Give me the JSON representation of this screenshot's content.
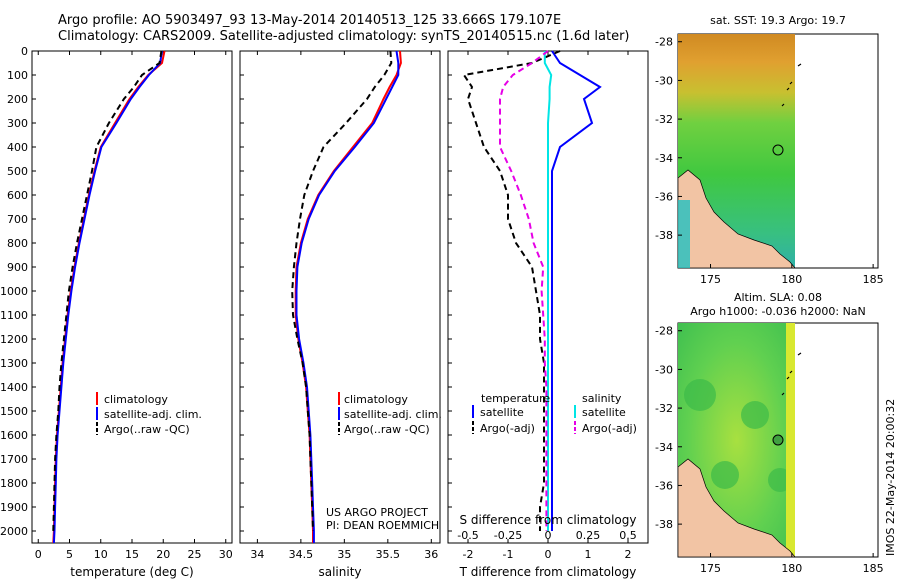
{
  "titles": {
    "line1": "Argo profile: AO 5903497_93 13-May-2014 20140513_125 33.666S 179.107E",
    "line2": "Climatology: CARS2009. Satellite-adjusted climatology: synTS_20140515.nc (1.6d later)"
  },
  "depth_ticks": [
    0,
    100,
    200,
    300,
    400,
    500,
    600,
    700,
    800,
    900,
    1000,
    1100,
    1200,
    1300,
    1400,
    1500,
    1600,
    1700,
    1800,
    1900,
    2000
  ],
  "colors": {
    "climatology": "#ff0000",
    "satellite": "#0000ff",
    "argo": "#000000",
    "salinity_sat": "#00e5e5",
    "salinity_argo": "#e600e6"
  },
  "panels": {
    "temperature": {
      "xlabel": "temperature (deg C)",
      "xlim": [
        -1,
        31
      ],
      "xticks": [
        "0",
        "5",
        "10",
        "15",
        "20",
        "25",
        "30"
      ],
      "xtick_values": [
        0,
        5,
        10,
        15,
        20,
        25,
        30
      ],
      "legend": [
        "climatology",
        "satellite-adj. clim.",
        "Argo(..raw -QC)"
      ]
    },
    "salinity": {
      "xlabel": "salinity",
      "xlim": [
        33.8,
        36.1
      ],
      "xticks": [
        "34",
        "34.5",
        "35",
        "35.5",
        "36"
      ],
      "xtick_values": [
        34,
        34.5,
        35,
        35.5,
        36
      ],
      "legend": [
        "climatology",
        "satellite-adj. clim.",
        "Argo(..raw -QC)"
      ],
      "annotation1": "US ARGO PROJECT",
      "annotation2": "PI: DEAN ROEMMICH"
    },
    "difference": {
      "xlabel": "T difference from climatology",
      "xlim": [
        -2.5,
        2.5
      ],
      "xticks": [
        "-2",
        "-1",
        "0",
        "1",
        "2"
      ],
      "xtick_values": [
        -2,
        -1,
        0,
        1,
        2
      ],
      "s_label": "S difference from climatology",
      "s_ticks": [
        "-0.5",
        "-0.25",
        "0",
        "0.25",
        "0.5"
      ],
      "s_tick_values": [
        -0.5,
        -0.25,
        0,
        0.25,
        0.5
      ],
      "legend_left_head": "temperature",
      "legend_right_head": "salinity",
      "legend_items": [
        "satellite",
        "Argo(-adj)",
        "satellite",
        "Argo(-adj)"
      ]
    }
  },
  "maps": {
    "sst_title": "sat. SST: 19.3 Argo: 19.7",
    "sla_title1": "Altim. SLA: 0.08",
    "sla_title2": "Argo h1000: -0.036 h2000: NaN",
    "xticks": [
      "175",
      "180",
      "185"
    ],
    "xtick_values": [
      175,
      180,
      185
    ],
    "yticks": [
      "-28",
      "-30",
      "-32",
      "-34",
      "-36",
      "-38"
    ],
    "ytick_values": [
      -28,
      -30,
      -32,
      -34,
      -36,
      -38
    ],
    "xlim": [
      173,
      185.3
    ],
    "ylim": [
      -39.7,
      -27.6
    ],
    "float_position": [
      179.107,
      -33.666
    ]
  },
  "footer": "IMOS 22-May-2014 20:00:32",
  "chart_data": [
    {
      "type": "line",
      "ylabel": "",
      "xlabel": "temperature (deg C)",
      "xlim": [
        -1,
        31
      ],
      "ylim": [
        2050,
        0
      ],
      "depth": [
        0,
        50,
        100,
        150,
        200,
        300,
        400,
        500,
        600,
        700,
        800,
        900,
        1000,
        1100,
        1200,
        1300,
        1400,
        1500,
        1600,
        1700,
        1800,
        1900,
        2000,
        2050
      ],
      "series": [
        {
          "name": "climatology",
          "values": [
            20.2,
            19.8,
            17.6,
            16.0,
            14.6,
            12.3,
            10.0,
            9.0,
            8.1,
            7.3,
            6.5,
            5.8,
            5.2,
            4.7,
            4.3,
            3.9,
            3.6,
            3.3,
            3.0,
            2.8,
            2.7,
            2.6,
            2.5,
            2.4
          ]
        },
        {
          "name": "satellite-adj. clim.",
          "values": [
            19.8,
            19.5,
            17.7,
            16.2,
            14.8,
            12.5,
            10.1,
            9.1,
            8.2,
            7.4,
            6.6,
            5.9,
            5.3,
            4.8,
            4.4,
            4.0,
            3.7,
            3.4,
            3.1,
            2.9,
            2.8,
            2.7,
            2.6,
            2.5
          ]
        },
        {
          "name": "Argo(..raw -QC)",
          "values": [
            19.7,
            19.4,
            16.6,
            15.3,
            13.7,
            11.3,
            9.3,
            8.6,
            7.8,
            7.0,
            6.2,
            5.5,
            4.9,
            4.5,
            4.1,
            3.7,
            3.4,
            3.2,
            2.9,
            2.7,
            2.6,
            2.5,
            2.4,
            null
          ]
        }
      ]
    },
    {
      "type": "line",
      "xlabel": "salinity",
      "xlim": [
        33.8,
        36.1
      ],
      "ylim": [
        2050,
        0
      ],
      "depth": [
        0,
        50,
        100,
        150,
        200,
        300,
        400,
        500,
        600,
        700,
        800,
        900,
        1000,
        1100,
        1200,
        1300,
        1400,
        1500,
        1600,
        1700,
        1800,
        1900,
        2000,
        2050
      ],
      "series": [
        {
          "name": "climatology",
          "values": [
            35.64,
            35.65,
            35.6,
            35.52,
            35.45,
            35.32,
            35.1,
            34.88,
            34.7,
            34.58,
            34.5,
            34.45,
            34.44,
            34.44,
            34.47,
            34.52,
            34.56,
            34.58,
            34.6,
            34.61,
            34.62,
            34.63,
            34.64,
            34.64
          ]
        },
        {
          "name": "satellite-adj. clim.",
          "values": [
            35.6,
            35.62,
            35.62,
            35.55,
            35.48,
            35.34,
            35.12,
            34.89,
            34.71,
            34.59,
            34.51,
            34.46,
            34.45,
            34.45,
            34.48,
            34.53,
            34.57,
            34.59,
            34.61,
            34.62,
            34.63,
            34.64,
            34.65,
            34.65
          ]
        },
        {
          "name": "Argo(..raw -QC)",
          "values": [
            35.53,
            35.54,
            35.46,
            35.35,
            35.26,
            35.02,
            34.76,
            34.64,
            34.54,
            34.49,
            34.45,
            34.42,
            34.4,
            34.41,
            34.46,
            34.52,
            34.56,
            34.58,
            34.6,
            34.61,
            34.62,
            34.63,
            34.64,
            null
          ]
        }
      ]
    },
    {
      "type": "line",
      "xlabel": "T difference from climatology",
      "xlim": [
        -2.5,
        2.5
      ],
      "ylim": [
        2050,
        0
      ],
      "depth": [
        0,
        50,
        100,
        150,
        200,
        300,
        400,
        500,
        600,
        700,
        800,
        900,
        1000,
        1100,
        1200,
        1300,
        1400,
        1500,
        1600,
        1700,
        1800,
        1900,
        2000
      ],
      "series": [
        {
          "name": "temperature satellite",
          "values": [
            0.1,
            0.3,
            0.8,
            1.3,
            0.9,
            1.1,
            0.3,
            0.1,
            0.1,
            0.1,
            0.1,
            0.1,
            0.1,
            0.1,
            0.1,
            0.1,
            0.1,
            0.1,
            0.1,
            0.1,
            0.1,
            0.1,
            0.1
          ]
        },
        {
          "name": "temperature Argo(-adj)",
          "values": [
            0.3,
            -0.4,
            -2.1,
            -1.9,
            -2.0,
            -1.8,
            -1.6,
            -1.2,
            -1.0,
            -1.0,
            -0.8,
            -0.4,
            -0.3,
            -0.2,
            -0.2,
            -0.1,
            -0.1,
            -0.1,
            -0.1,
            -0.1,
            -0.1,
            -0.2,
            -0.2
          ]
        },
        {
          "name": "salinity satellite",
          "values": [
            -0.02,
            -0.02,
            0.02,
            0.01,
            0.01,
            0.0,
            0.0,
            0.0,
            0.0,
            0.0,
            0.0,
            0.0,
            0.0,
            0.0,
            0.0,
            0.0,
            0.0,
            0.0,
            0.0,
            0.0,
            0.0,
            0.0,
            0.0
          ]
        },
        {
          "name": "salinity Argo(-adj)",
          "values": [
            0.0,
            -0.1,
            -0.22,
            -0.28,
            -0.3,
            -0.3,
            -0.3,
            -0.23,
            -0.17,
            -0.12,
            -0.09,
            -0.03,
            -0.04,
            -0.03,
            -0.02,
            -0.02,
            -0.01,
            -0.01,
            -0.01,
            -0.01,
            -0.01,
            -0.01,
            -0.01
          ]
        }
      ]
    }
  ]
}
